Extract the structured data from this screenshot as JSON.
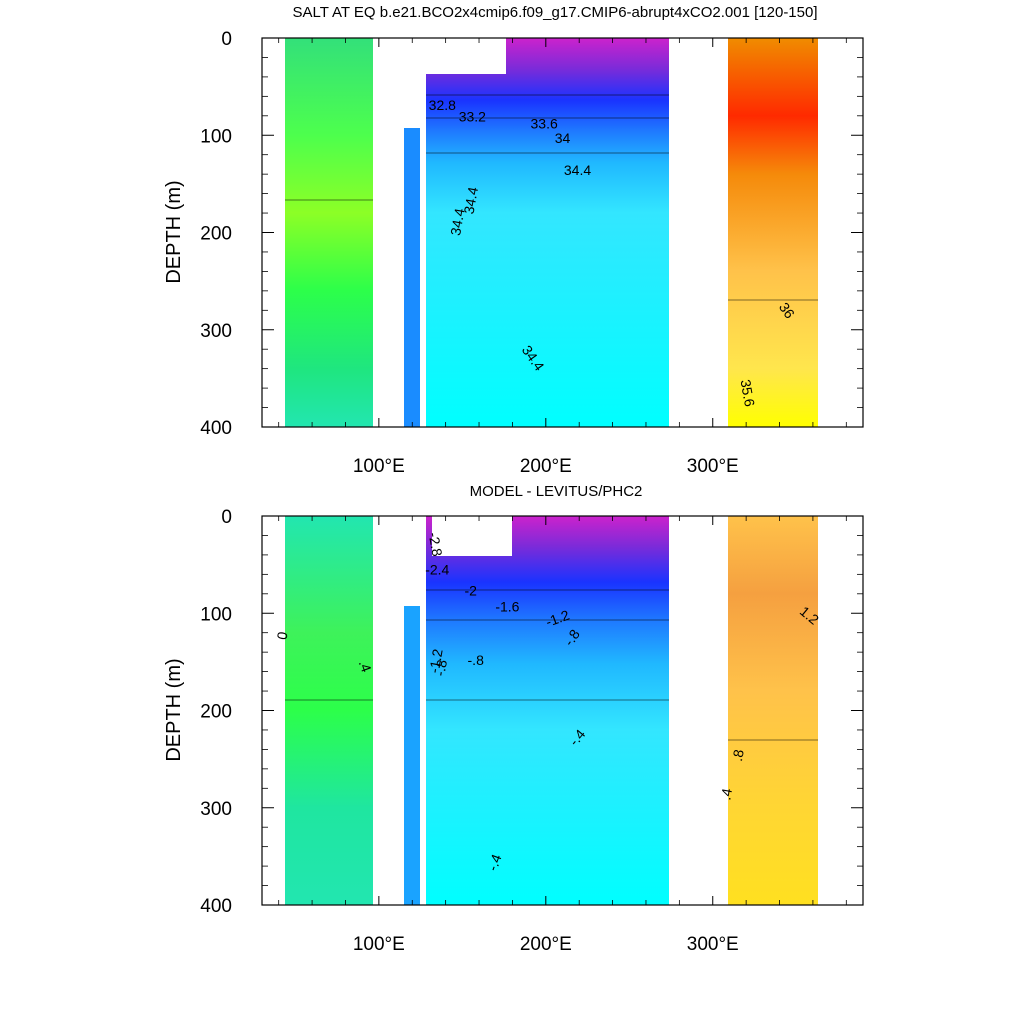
{
  "chart_data": [
    {
      "type": "heatmap",
      "title": "SALT AT EQ b.e21.BCO2x4cmip6.f09_g17.CMIP6-abrupt4xCO2.001 [120-150]",
      "ylabel": "DEPTH (m)",
      "xlabel": "",
      "xlim": [
        30,
        390
      ],
      "ylim": [
        400,
        0
      ],
      "x_ticks": [
        {
          "v": 100,
          "label": "100"
        },
        {
          "v": 200,
          "label": "200"
        },
        {
          "v": 300,
          "label": "300"
        }
      ],
      "x_tick_suffix": "°E",
      "y_ticks": [
        {
          "v": 0,
          "label": "0"
        },
        {
          "v": 100,
          "label": "100"
        },
        {
          "v": 200,
          "label": "200"
        },
        {
          "v": 300,
          "label": "300"
        },
        {
          "v": 400,
          "label": "400"
        }
      ],
      "contour_labels": [
        {
          "text": "32.8",
          "x": 138,
          "y": 74,
          "rot": 0
        },
        {
          "text": "33.2",
          "x": 156,
          "y": 86,
          "rot": 0
        },
        {
          "text": "33.6",
          "x": 199,
          "y": 93,
          "rot": 0
        },
        {
          "text": "34",
          "x": 210,
          "y": 108,
          "rot": 0
        },
        {
          "text": "34.4",
          "x": 219,
          "y": 141,
          "rot": 0
        },
        {
          "text": "34.4",
          "x": 158,
          "y": 168,
          "rot": -80
        },
        {
          "text": "34.4",
          "x": 150,
          "y": 190,
          "rot": -80
        },
        {
          "text": "34.4",
          "x": 190,
          "y": 332,
          "rot": 55
        },
        {
          "text": "36",
          "x": 342,
          "y": 283,
          "rot": 55
        },
        {
          "text": "35.6",
          "x": 318,
          "y": 366,
          "rot": 80
        }
      ]
    },
    {
      "type": "heatmap",
      "title": "MODEL - LEVITUS/PHC2",
      "ylabel": "DEPTH (m)",
      "xlabel": "",
      "xlim": [
        30,
        390
      ],
      "ylim": [
        400,
        0
      ],
      "x_ticks": [
        {
          "v": 100,
          "label": "100"
        },
        {
          "v": 200,
          "label": "200"
        },
        {
          "v": 300,
          "label": "300"
        }
      ],
      "x_tick_suffix": "°E",
      "y_ticks": [
        {
          "v": 0,
          "label": "0"
        },
        {
          "v": 100,
          "label": "100"
        },
        {
          "v": 200,
          "label": "200"
        },
        {
          "v": 300,
          "label": "300"
        },
        {
          "v": 400,
          "label": "400"
        }
      ],
      "contour_labels": [
        {
          "text": "-2.8",
          "x": 131,
          "y": 30,
          "rot": 80
        },
        {
          "text": "-2.4",
          "x": 135,
          "y": 60,
          "rot": 0
        },
        {
          "text": "-2",
          "x": 155,
          "y": 82,
          "rot": 0
        },
        {
          "text": "-1.6",
          "x": 177,
          "y": 98,
          "rot": 0
        },
        {
          "text": "-1.2",
          "x": 208,
          "y": 110,
          "rot": -20
        },
        {
          "text": "-.8",
          "x": 218,
          "y": 128,
          "rot": -55
        },
        {
          "text": "-1.2",
          "x": 137,
          "y": 150,
          "rot": -80
        },
        {
          "text": "-.8",
          "x": 140,
          "y": 157,
          "rot": -80
        },
        {
          "text": "-.8",
          "x": 158,
          "y": 153,
          "rot": 0
        },
        {
          "text": "0",
          "x": 45,
          "y": 124,
          "rot": -80
        },
        {
          "text": ".4",
          "x": 89,
          "y": 156,
          "rot": 70
        },
        {
          "text": "-.4",
          "x": 221,
          "y": 231,
          "rot": -50
        },
        {
          "text": "-.4",
          "x": 172,
          "y": 358,
          "rot": -70
        },
        {
          "text": "1.2",
          "x": 356,
          "y": 106,
          "rot": 40
        },
        {
          "text": ".8",
          "x": 318,
          "y": 247,
          "rot": -80
        },
        {
          "text": ".4",
          "x": 311,
          "y": 287,
          "rot": -80
        }
      ]
    }
  ]
}
